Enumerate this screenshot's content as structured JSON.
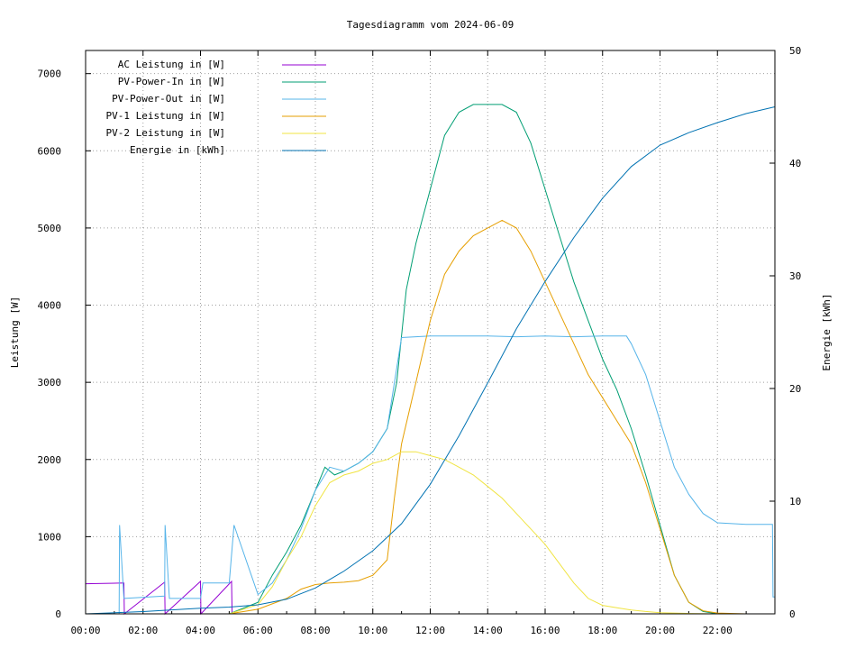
{
  "chart_data": {
    "type": "line",
    "title": "Tagesdiagramm vom 2024-06-09",
    "ylabel": "Leistung [W]",
    "y2label": "Energie [kWh]",
    "ylim": [
      0,
      7300
    ],
    "y2lim": [
      0,
      50
    ],
    "x_hours_range": [
      0,
      24
    ],
    "x_ticks": [
      "00:00",
      "02:00",
      "04:00",
      "06:00",
      "08:00",
      "10:00",
      "12:00",
      "14:00",
      "16:00",
      "18:00",
      "20:00",
      "22:00"
    ],
    "y_ticks": [
      "0",
      "1000",
      "2000",
      "3000",
      "4000",
      "5000",
      "6000",
      "7000"
    ],
    "y2_ticks": [
      "0",
      "10",
      "20",
      "30",
      "40",
      "50"
    ],
    "grid": true,
    "legend_position": "top-left",
    "series": [
      {
        "name": "AC Leistung in [W]",
        "color": "#9400d3",
        "axis": "left",
        "x": [
          "00:00",
          "01:20",
          "01:21",
          "02:45",
          "02:46",
          "04:00",
          "04:01",
          "05:05",
          "05:06",
          "06:00"
        ],
        "y": [
          390,
          400,
          0,
          410,
          0,
          420,
          0,
          420,
          0,
          0
        ]
      },
      {
        "name": "PV-Power-In in [W]",
        "color": "#009e73",
        "axis": "left",
        "x": [
          "05:00",
          "06:00",
          "06:30",
          "07:00",
          "07:30",
          "08:00",
          "08:20",
          "08:40",
          "09:00",
          "09:30",
          "10:00",
          "10:30",
          "10:50",
          "11:10",
          "11:30",
          "12:00",
          "12:30",
          "13:00",
          "13:30",
          "14:00",
          "14:30",
          "15:00",
          "15:30",
          "16:00",
          "16:30",
          "17:00",
          "17:30",
          "18:00",
          "18:30",
          "19:00",
          "19:30",
          "20:00",
          "20:30",
          "21:00",
          "21:30",
          "22:00",
          "22:30",
          "23:00"
        ],
        "y": [
          0,
          150,
          500,
          800,
          1150,
          1600,
          1900,
          1800,
          1850,
          1950,
          2100,
          2400,
          3000,
          4200,
          4800,
          5500,
          6200,
          6500,
          6600,
          6600,
          6600,
          6500,
          6100,
          5500,
          4900,
          4300,
          3800,
          3300,
          2900,
          2400,
          1800,
          1150,
          500,
          150,
          30,
          0,
          0,
          0
        ]
      },
      {
        "name": "PV-Power-Out in [W]",
        "color": "#56b4e9",
        "axis": "left",
        "x": [
          "00:00",
          "01:10",
          "01:11",
          "01:20",
          "01:21",
          "02:45",
          "02:46",
          "02:55",
          "03:00",
          "04:00",
          "04:05",
          "05:00",
          "05:10",
          "06:00",
          "06:30",
          "07:00",
          "07:30",
          "08:00",
          "08:30",
          "09:00",
          "09:30",
          "10:00",
          "10:30",
          "11:00",
          "12:00",
          "13:00",
          "14:00",
          "15:00",
          "16:00",
          "17:00",
          "18:00",
          "18:50",
          "19:00",
          "19:30",
          "20:00",
          "20:30",
          "21:00",
          "21:30",
          "22:00",
          "23:00",
          "23:55",
          "23:56",
          "24:00"
        ],
        "y": [
          0,
          0,
          1150,
          200,
          200,
          230,
          1150,
          200,
          200,
          200,
          400,
          400,
          1150,
          250,
          400,
          700,
          1100,
          1600,
          1900,
          1850,
          1950,
          2100,
          2400,
          3580,
          3600,
          3600,
          3600,
          3590,
          3600,
          3590,
          3600,
          3600,
          3500,
          3100,
          2500,
          1900,
          1550,
          1300,
          1180,
          1160,
          1160,
          220,
          220
        ]
      },
      {
        "name": "PV-1 Leistung in [W]",
        "color": "#e69f00",
        "axis": "left",
        "x": [
          "05:00",
          "06:00",
          "07:00",
          "07:30",
          "08:00",
          "08:30",
          "09:00",
          "09:30",
          "10:00",
          "10:30",
          "10:45",
          "11:00",
          "11:30",
          "12:00",
          "12:30",
          "13:00",
          "13:30",
          "14:00",
          "14:30",
          "15:00",
          "15:30",
          "16:00",
          "16:30",
          "17:00",
          "17:30",
          "18:00",
          "18:30",
          "19:00",
          "19:30",
          "20:00",
          "20:30",
          "21:00",
          "21:30",
          "22:00",
          "23:00"
        ],
        "y": [
          0,
          60,
          200,
          320,
          380,
          400,
          410,
          430,
          500,
          700,
          1500,
          2200,
          3000,
          3800,
          4400,
          4700,
          4900,
          5000,
          5100,
          5000,
          4700,
          4300,
          3900,
          3500,
          3100,
          2800,
          2500,
          2200,
          1700,
          1100,
          500,
          150,
          40,
          10,
          0
        ]
      },
      {
        "name": "PV-2 Leistung in [W]",
        "color": "#f0e442",
        "axis": "left",
        "x": [
          "05:00",
          "06:00",
          "06:30",
          "07:00",
          "07:30",
          "08:00",
          "08:30",
          "09:00",
          "09:30",
          "10:00",
          "10:30",
          "11:00",
          "11:30",
          "12:00",
          "12:30",
          "13:00",
          "13:30",
          "14:00",
          "14:30",
          "15:00",
          "15:30",
          "16:00",
          "16:30",
          "17:00",
          "17:30",
          "18:00",
          "18:30",
          "19:00",
          "19:30",
          "20:00",
          "21:00",
          "22:00",
          "23:00"
        ],
        "y": [
          0,
          120,
          350,
          700,
          1000,
          1400,
          1700,
          1800,
          1850,
          1950,
          2000,
          2100,
          2100,
          2050,
          2000,
          1900,
          1800,
          1650,
          1500,
          1300,
          1100,
          900,
          650,
          400,
          200,
          110,
          80,
          50,
          30,
          15,
          5,
          0,
          0
        ]
      },
      {
        "name": "Energie in [kWh]",
        "color": "#0072b2",
        "axis": "right",
        "x": [
          "00:00",
          "02:00",
          "04:00",
          "05:00",
          "06:00",
          "07:00",
          "08:00",
          "09:00",
          "10:00",
          "11:00",
          "12:00",
          "13:00",
          "14:00",
          "15:00",
          "16:00",
          "17:00",
          "18:00",
          "19:00",
          "20:00",
          "21:00",
          "22:00",
          "23:00",
          "24:00"
        ],
        "y": [
          0,
          0.2,
          0.5,
          0.6,
          0.8,
          1.3,
          2.3,
          3.8,
          5.6,
          8.0,
          11.5,
          15.8,
          20.5,
          25.3,
          29.5,
          33.4,
          36.9,
          39.7,
          41.6,
          42.7,
          43.6,
          44.4,
          45.0
        ]
      }
    ]
  }
}
